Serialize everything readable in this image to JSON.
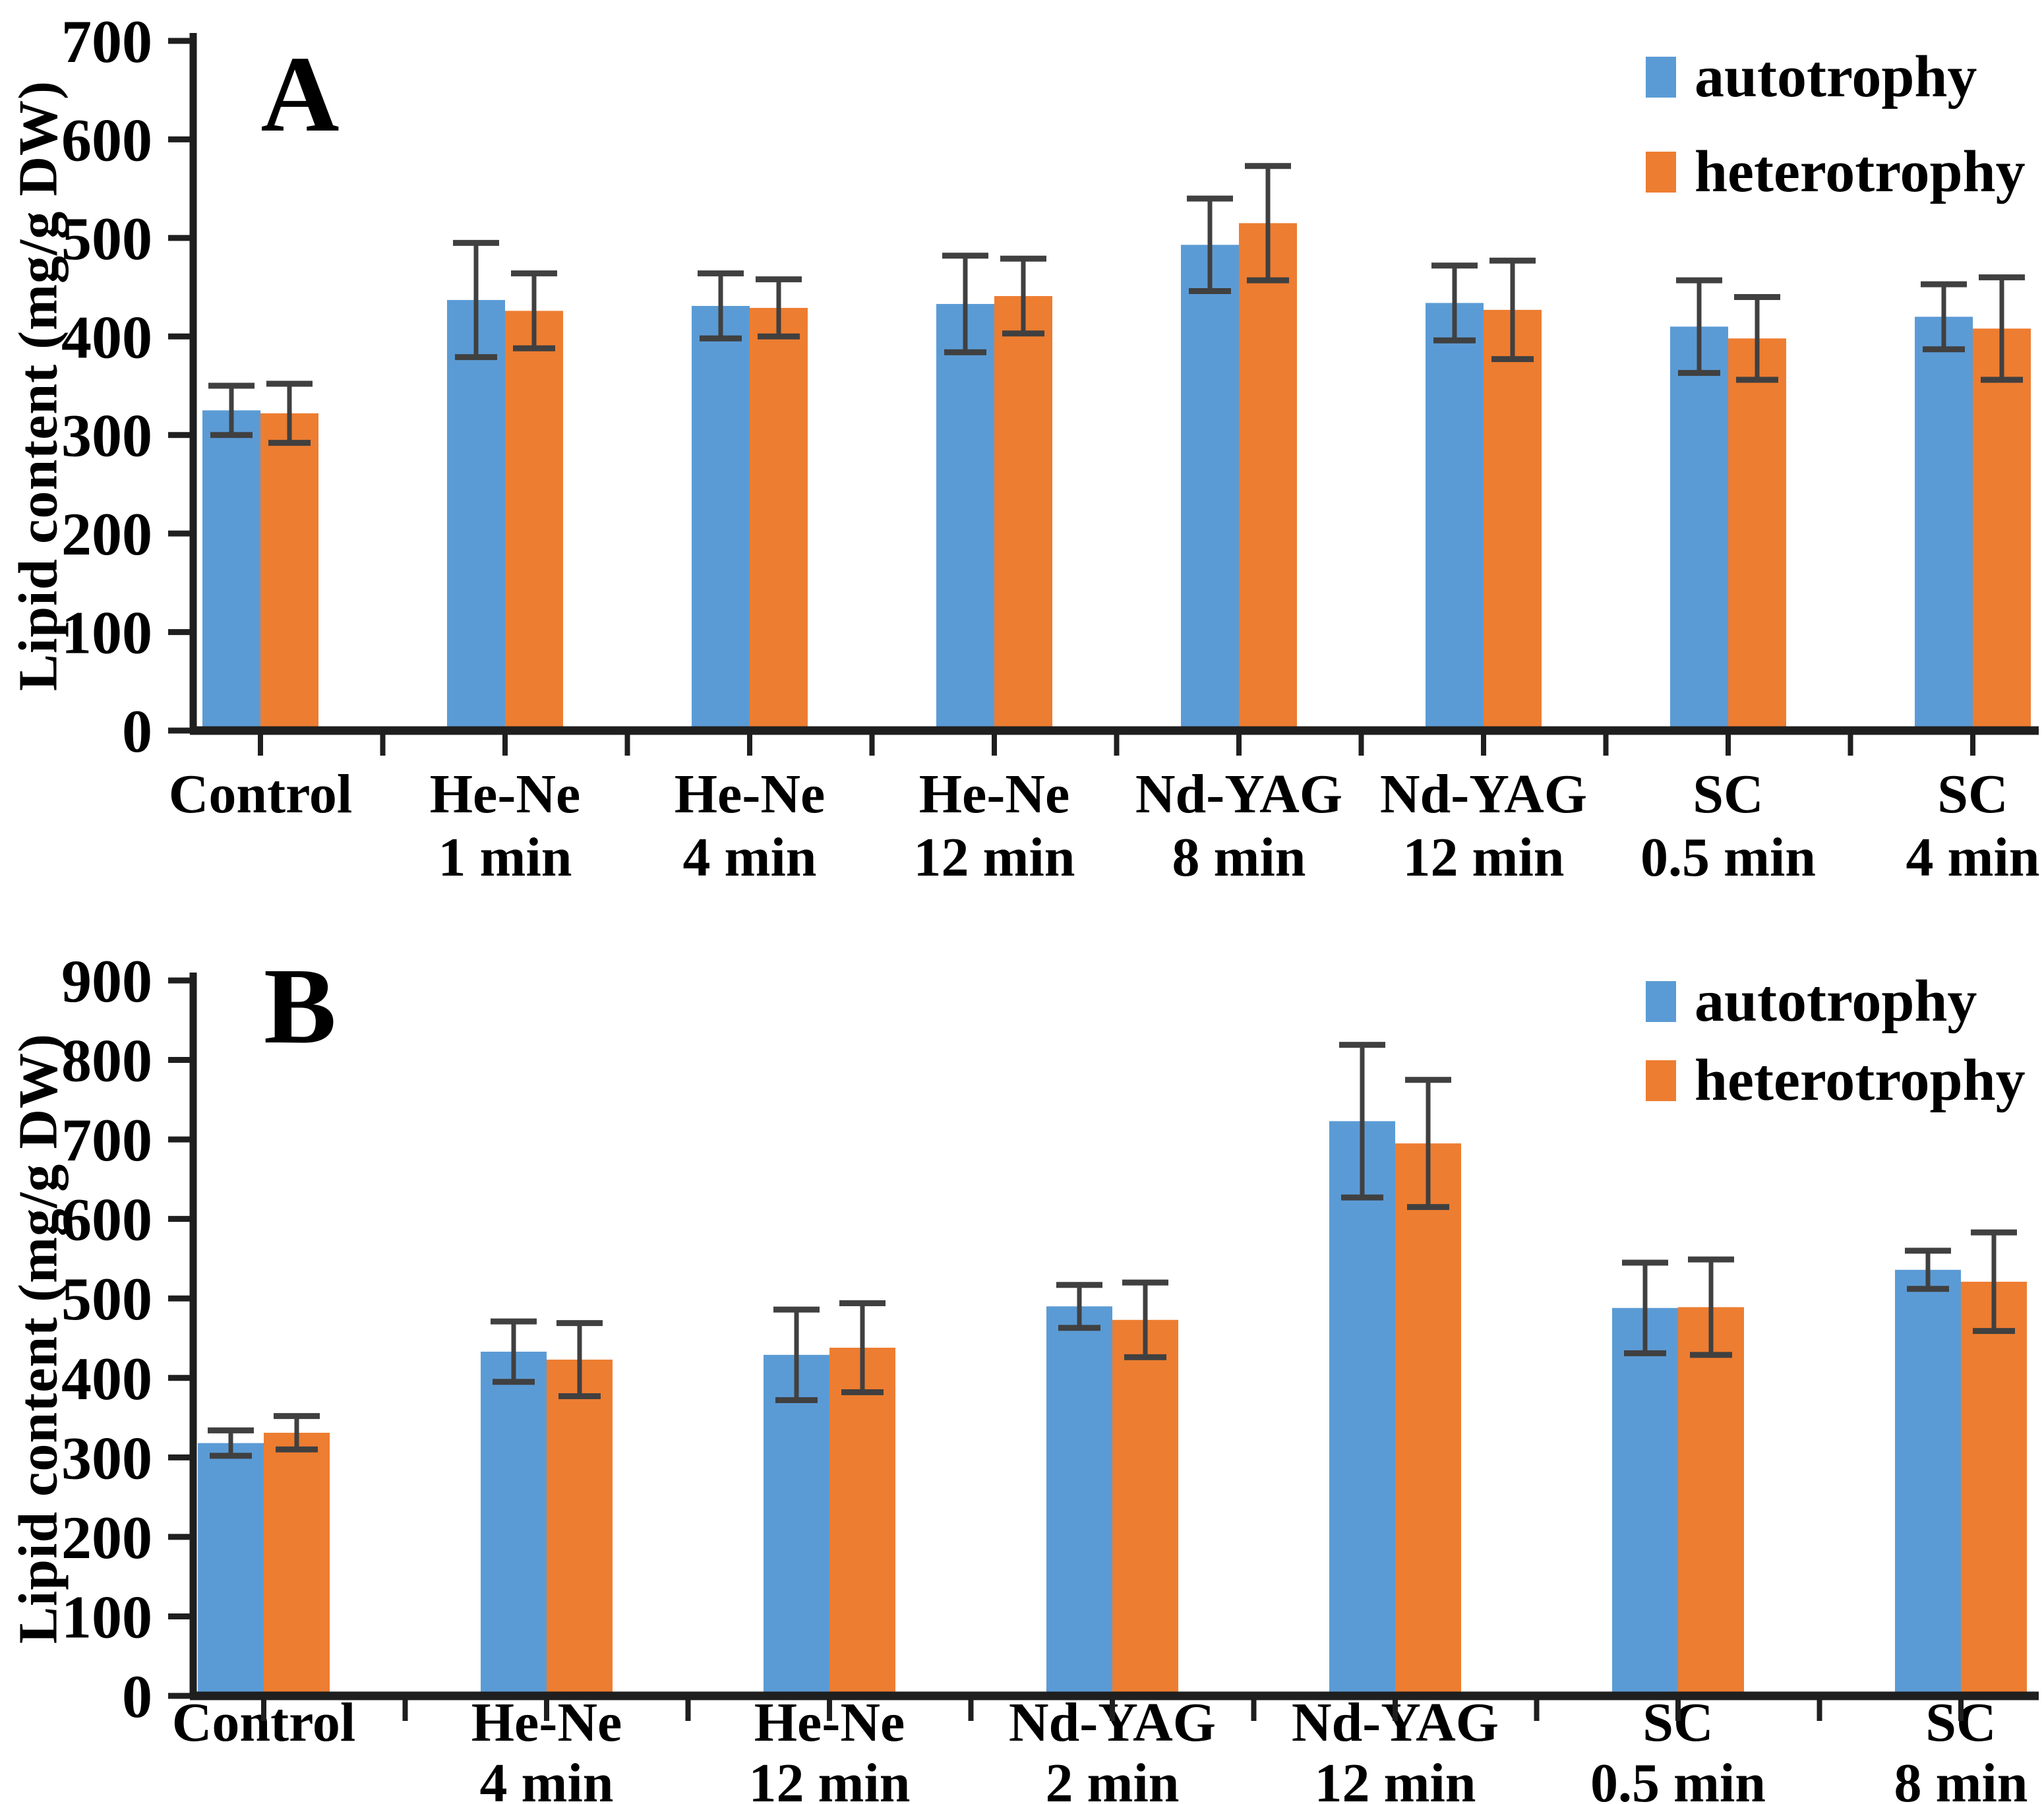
{
  "figure": {
    "background": "#ffffff",
    "axis_color": "#1f1f1f",
    "error_bar_color": "#404040"
  },
  "chart_data": [
    {
      "id": "A",
      "type": "bar",
      "panel_label": "A",
      "ylabel": "Lipid content (mg/g DW)",
      "ylim": [
        0,
        700
      ],
      "ytick_step": 100,
      "grid": false,
      "legend_position": "top-right",
      "error_bars": true,
      "categories": [
        {
          "line1": "Control",
          "line2": ""
        },
        {
          "line1": "He-Ne",
          "line2": "1 min"
        },
        {
          "line1": "He-Ne",
          "line2": "4 min"
        },
        {
          "line1": "He-Ne",
          "line2": "12 min"
        },
        {
          "line1": "Nd-YAG",
          "line2": "8 min"
        },
        {
          "line1": "Nd-YAG",
          "line2": "12 min"
        },
        {
          "line1": "SC",
          "line2": "0.5 min"
        },
        {
          "line1": "SC",
          "line2": "4 min"
        }
      ],
      "series": [
        {
          "name": "autotrophy",
          "color": "#5B9BD5",
          "values": [
            325,
            437,
            431,
            433,
            493,
            434,
            410,
            420
          ],
          "errors": [
            25,
            58,
            33,
            49,
            47,
            38,
            47,
            33
          ]
        },
        {
          "name": "heterotrophy",
          "color": "#ED7D31",
          "values": [
            322,
            426,
            429,
            441,
            515,
            427,
            398,
            408
          ],
          "errors": [
            30,
            38,
            29,
            38,
            58,
            50,
            42,
            52
          ]
        }
      ]
    },
    {
      "id": "B",
      "type": "bar",
      "panel_label": "B",
      "ylabel": "Lipid content (mg/g DW)",
      "ylim": [
        0,
        900
      ],
      "ytick_step": 100,
      "grid": false,
      "legend_position": "top-right",
      "error_bars": true,
      "categories": [
        {
          "line1": "Control",
          "line2": ""
        },
        {
          "line1": "He-Ne",
          "line2": "4 min"
        },
        {
          "line1": "He-Ne",
          "line2": "12 min"
        },
        {
          "line1": "Nd-YAG",
          "line2": "2 min"
        },
        {
          "line1": "Nd-YAG",
          "line2": "12 min"
        },
        {
          "line1": "SC",
          "line2": "0.5 min"
        },
        {
          "line1": "SC",
          "line2": "8 min"
        }
      ],
      "series": [
        {
          "name": "autotrophy",
          "color": "#5B9BD5",
          "values": [
            318,
            433,
            429,
            490,
            723,
            488,
            536
          ],
          "errors": [
            16,
            38,
            57,
            27,
            96,
            57,
            24
          ]
        },
        {
          "name": "heterotrophy",
          "color": "#ED7D31",
          "values": [
            331,
            423,
            438,
            473,
            695,
            489,
            521
          ],
          "errors": [
            21,
            46,
            56,
            47,
            80,
            60,
            62
          ]
        }
      ]
    }
  ]
}
